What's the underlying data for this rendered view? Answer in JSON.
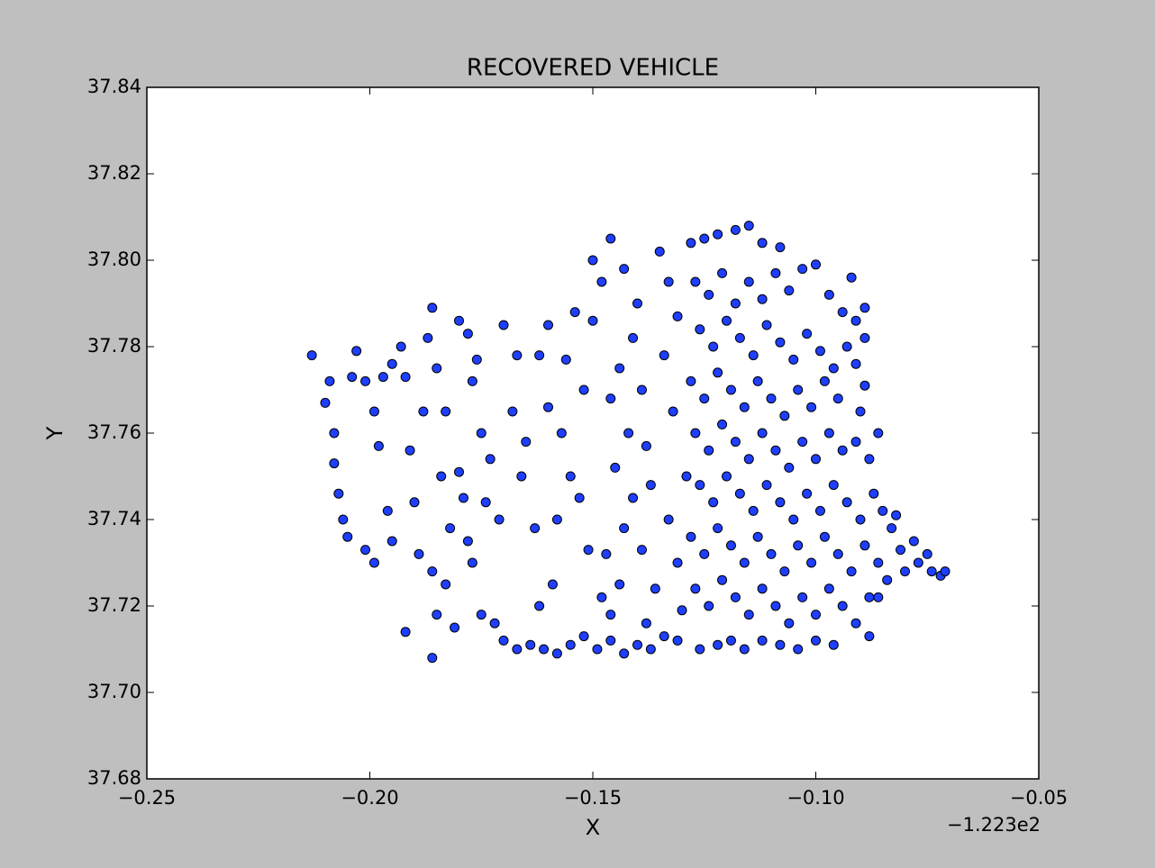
{
  "chart_data": {
    "type": "scatter",
    "title": "RECOVERED VEHICLE",
    "x_label": "X",
    "y_label": "Y",
    "x_offset_label": "−1.223e2",
    "color": "#1f3fff",
    "grid": false,
    "xlim": [
      -0.25,
      -0.05
    ],
    "xticks": [
      {
        "value": -0.25,
        "label": "−0.25"
      },
      {
        "value": -0.2,
        "label": "−0.20"
      },
      {
        "value": -0.15,
        "label": "−0.15"
      },
      {
        "value": -0.1,
        "label": "−0.10"
      },
      {
        "value": -0.05,
        "label": "−0.05"
      }
    ],
    "ylim": [
      37.68,
      37.84
    ],
    "yticks": [
      {
        "value": 37.68,
        "label": "37.68"
      },
      {
        "value": 37.7,
        "label": "37.70"
      },
      37.72,
      37.74,
      37.76,
      37.78,
      {
        "value": 37.8,
        "label": "37.80"
      },
      37.82,
      37.84
    ],
    "x": [
      -0.213,
      -0.209,
      -0.21,
      -0.208,
      -0.208,
      -0.207,
      -0.206,
      -0.205,
      -0.204,
      -0.203,
      -0.201,
      -0.199,
      -0.198,
      -0.196,
      -0.197,
      -0.195,
      -0.201,
      -0.199,
      -0.195,
      -0.193,
      -0.192,
      -0.191,
      -0.19,
      -0.188,
      -0.187,
      -0.186,
      -0.185,
      -0.184,
      -0.183,
      -0.182,
      -0.186,
      -0.189,
      -0.192,
      -0.186,
      -0.185,
      -0.183,
      -0.18,
      -0.178,
      -0.177,
      -0.176,
      -0.175,
      -0.173,
      -0.18,
      -0.179,
      -0.178,
      -0.177,
      -0.181,
      -0.175,
      -0.172,
      -0.174,
      -0.17,
      -0.171,
      -0.168,
      -0.167,
      -0.166,
      -0.165,
      -0.162,
      -0.16,
      -0.16,
      -0.163,
      -0.162,
      -0.159,
      -0.158,
      -0.156,
      -0.154,
      -0.157,
      -0.155,
      -0.152,
      -0.15,
      -0.153,
      -0.151,
      -0.17,
      -0.167,
      -0.164,
      -0.161,
      -0.158,
      -0.155,
      -0.152,
      -0.149,
      -0.146,
      -0.143,
      -0.14,
      -0.137,
      -0.134,
      -0.131,
      -0.126,
      -0.122,
      -0.119,
      -0.116,
      -0.112,
      -0.108,
      -0.104,
      -0.1,
      -0.096,
      -0.148,
      -0.146,
      -0.144,
      -0.147,
      -0.143,
      -0.141,
      -0.145,
      -0.142,
      -0.146,
      -0.144,
      -0.141,
      -0.148,
      -0.15,
      -0.146,
      -0.143,
      -0.14,
      -0.139,
      -0.138,
      -0.137,
      -0.139,
      -0.136,
      -0.138,
      -0.135,
      -0.133,
      -0.131,
      -0.134,
      -0.132,
      -0.133,
      -0.131,
      -0.13,
      -0.129,
      -0.128,
      -0.125,
      -0.122,
      -0.118,
      -0.115,
      -0.112,
      -0.108,
      -0.127,
      -0.124,
      -0.121,
      -0.118,
      -0.115,
      -0.112,
      -0.109,
      -0.106,
      -0.103,
      -0.1,
      -0.097,
      -0.094,
      -0.091,
      -0.089,
      -0.126,
      -0.123,
      -0.12,
      -0.117,
      -0.114,
      -0.111,
      -0.108,
      -0.105,
      -0.102,
      -0.099,
      -0.096,
      -0.093,
      -0.089,
      -0.128,
      -0.125,
      -0.122,
      -0.119,
      -0.116,
      -0.113,
      -0.11,
      -0.107,
      -0.104,
      -0.101,
      -0.098,
      -0.095,
      -0.089,
      -0.127,
      -0.124,
      -0.121,
      -0.118,
      -0.115,
      -0.112,
      -0.109,
      -0.106,
      -0.103,
      -0.1,
      -0.097,
      -0.094,
      -0.091,
      -0.088,
      -0.086,
      -0.126,
      -0.123,
      -0.12,
      -0.117,
      -0.114,
      -0.111,
      -0.108,
      -0.105,
      -0.102,
      -0.099,
      -0.096,
      -0.093,
      -0.09,
      -0.087,
      -0.085,
      -0.128,
      -0.125,
      -0.122,
      -0.119,
      -0.116,
      -0.113,
      -0.11,
      -0.107,
      -0.104,
      -0.101,
      -0.098,
      -0.095,
      -0.092,
      -0.089,
      -0.086,
      -0.127,
      -0.124,
      -0.121,
      -0.118,
      -0.115,
      -0.112,
      -0.109,
      -0.106,
      -0.103,
      -0.1,
      -0.097,
      -0.094,
      -0.091,
      -0.088,
      -0.083,
      -0.081,
      -0.08,
      -0.078,
      -0.077,
      -0.075,
      -0.074,
      -0.072,
      -0.071,
      -0.084,
      -0.082,
      -0.086,
      -0.088,
      -0.09,
      -0.091,
      -0.092
    ],
    "values": [
      37.778,
      37.772,
      37.767,
      37.76,
      37.753,
      37.746,
      37.74,
      37.736,
      37.773,
      37.779,
      37.772,
      37.765,
      37.757,
      37.742,
      37.773,
      37.776,
      37.733,
      37.73,
      37.735,
      37.78,
      37.773,
      37.756,
      37.744,
      37.765,
      37.782,
      37.789,
      37.775,
      37.75,
      37.765,
      37.738,
      37.728,
      37.732,
      37.714,
      37.708,
      37.718,
      37.725,
      37.786,
      37.783,
      37.772,
      37.777,
      37.76,
      37.754,
      37.751,
      37.745,
      37.735,
      37.73,
      37.715,
      37.718,
      37.716,
      37.744,
      37.785,
      37.74,
      37.765,
      37.778,
      37.75,
      37.758,
      37.778,
      37.766,
      37.785,
      37.738,
      37.72,
      37.725,
      37.74,
      37.777,
      37.788,
      37.76,
      37.75,
      37.77,
      37.786,
      37.745,
      37.733,
      37.712,
      37.71,
      37.711,
      37.71,
      37.709,
      37.711,
      37.713,
      37.71,
      37.712,
      37.709,
      37.711,
      37.71,
      37.713,
      37.712,
      37.71,
      37.711,
      37.712,
      37.71,
      37.712,
      37.711,
      37.71,
      37.712,
      37.711,
      37.722,
      37.718,
      37.725,
      37.732,
      37.738,
      37.745,
      37.752,
      37.76,
      37.768,
      37.775,
      37.782,
      37.795,
      37.8,
      37.805,
      37.798,
      37.79,
      37.77,
      37.757,
      37.748,
      37.733,
      37.724,
      37.716,
      37.802,
      37.795,
      37.787,
      37.778,
      37.765,
      37.74,
      37.73,
      37.719,
      37.75,
      37.804,
      37.805,
      37.806,
      37.807,
      37.808,
      37.804,
      37.803,
      37.795,
      37.792,
      37.797,
      37.79,
      37.795,
      37.791,
      37.797,
      37.793,
      37.798,
      37.799,
      37.792,
      37.788,
      37.786,
      37.789,
      37.784,
      37.78,
      37.786,
      37.782,
      37.778,
      37.785,
      37.781,
      37.777,
      37.783,
      37.779,
      37.775,
      37.78,
      37.782,
      37.772,
      37.768,
      37.774,
      37.77,
      37.766,
      37.772,
      37.768,
      37.764,
      37.77,
      37.766,
      37.772,
      37.768,
      37.771,
      37.76,
      37.756,
      37.762,
      37.758,
      37.754,
      37.76,
      37.756,
      37.752,
      37.758,
      37.754,
      37.76,
      37.756,
      37.758,
      37.754,
      37.76,
      37.748,
      37.744,
      37.75,
      37.746,
      37.742,
      37.748,
      37.744,
      37.74,
      37.746,
      37.742,
      37.748,
      37.744,
      37.74,
      37.746,
      37.742,
      37.736,
      37.732,
      37.738,
      37.734,
      37.73,
      37.736,
      37.732,
      37.728,
      37.734,
      37.73,
      37.736,
      37.732,
      37.728,
      37.734,
      37.73,
      37.724,
      37.72,
      37.726,
      37.722,
      37.718,
      37.724,
      37.72,
      37.716,
      37.722,
      37.718,
      37.724,
      37.72,
      37.716,
      37.722,
      37.738,
      37.733,
      37.728,
      37.735,
      37.73,
      37.732,
      37.728,
      37.727,
      37.728,
      37.726,
      37.741,
      37.722,
      37.713,
      37.765,
      37.776,
      37.796
    ]
  }
}
